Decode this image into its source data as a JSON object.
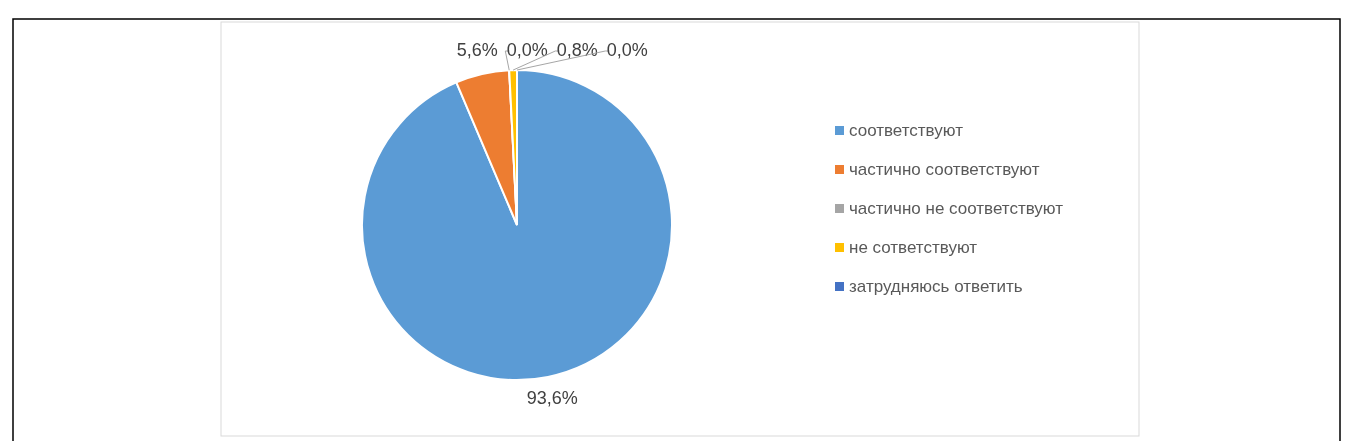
{
  "chart_data": {
    "type": "pie",
    "categories": [
      "соответствуют",
      "частично соответствуют",
      "частично не соответствуют",
      "не сответствуют",
      "затрудняюсь ответить"
    ],
    "values": [
      93.6,
      5.6,
      0.0,
      0.8,
      0.0
    ],
    "colors": [
      "#5b9bd5",
      "#ed7d31",
      "#a5a5a5",
      "#ffc000",
      "#4472c4"
    ],
    "value_labels": [
      "93,6%",
      "5,6%",
      "0,0%",
      "0,8%",
      "0,0%"
    ],
    "legend": "right"
  }
}
